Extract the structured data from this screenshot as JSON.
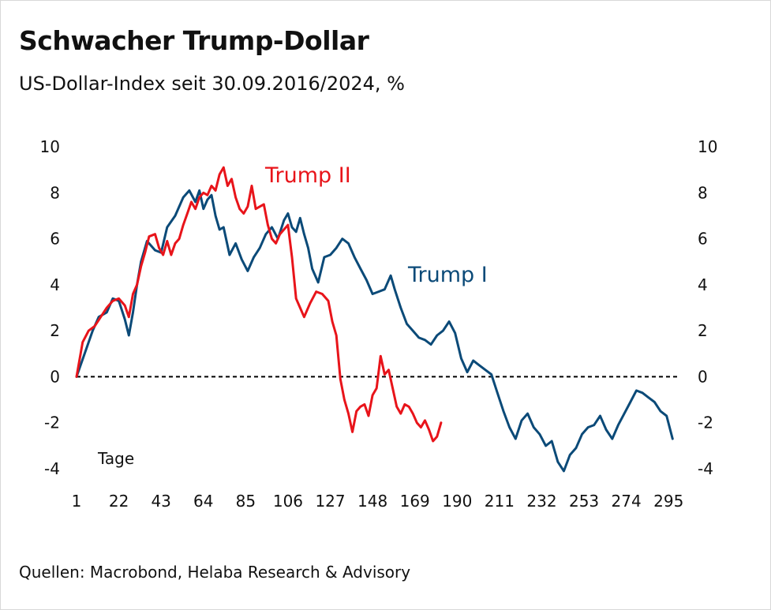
{
  "title": "Schwacher Trump-Dollar",
  "subtitle": "US-Dollar-Index seit 30.09.2016/2024, %",
  "source": "Quellen: Macrobond, Helaba Research & Advisory",
  "chart_data": {
    "type": "line",
    "xlabel": "Tage",
    "ylabel": "",
    "xlim": [
      1,
      300
    ],
    "ylim": [
      -4,
      10
    ],
    "x_ticks": [
      "1",
      "22",
      "43",
      "64",
      "85",
      "106",
      "127",
      "148",
      "169",
      "190",
      "211",
      "232",
      "253",
      "274",
      "295"
    ],
    "y_ticks_left": [
      "10",
      "8",
      "6",
      "4",
      "2",
      "0",
      "-2",
      "-4"
    ],
    "y_ticks_right": [
      "10",
      "8",
      "6",
      "4",
      "2",
      "0",
      "-2",
      "-4"
    ],
    "reference_line": {
      "y": 0,
      "style": "dashed"
    },
    "grid": false,
    "series": [
      {
        "name": "Trump I",
        "color": "#0b4a78",
        "points": [
          [
            1,
            0
          ],
          [
            5,
            1
          ],
          [
            9,
            2
          ],
          [
            12,
            2.6
          ],
          [
            16,
            2.8
          ],
          [
            19,
            3.4
          ],
          [
            22,
            3.3
          ],
          [
            25,
            2.5
          ],
          [
            27,
            1.8
          ],
          [
            29,
            2.8
          ],
          [
            31,
            4
          ],
          [
            33,
            5
          ],
          [
            36,
            5.9
          ],
          [
            40,
            5.5
          ],
          [
            43,
            5.4
          ],
          [
            46,
            6.5
          ],
          [
            50,
            7
          ],
          [
            54,
            7.8
          ],
          [
            57,
            8.1
          ],
          [
            60,
            7.6
          ],
          [
            62,
            8.1
          ],
          [
            64,
            7.3
          ],
          [
            66,
            7.7
          ],
          [
            68,
            7.9
          ],
          [
            70,
            7
          ],
          [
            72,
            6.4
          ],
          [
            74,
            6.5
          ],
          [
            77,
            5.3
          ],
          [
            80,
            5.8
          ],
          [
            83,
            5.1
          ],
          [
            86,
            4.6
          ],
          [
            89,
            5.2
          ],
          [
            92,
            5.6
          ],
          [
            95,
            6.2
          ],
          [
            98,
            6.5
          ],
          [
            101,
            6
          ],
          [
            104,
            6.8
          ],
          [
            106,
            7.1
          ],
          [
            108,
            6.5
          ],
          [
            110,
            6.3
          ],
          [
            112,
            6.9
          ],
          [
            114,
            6.2
          ],
          [
            116,
            5.6
          ],
          [
            118,
            4.7
          ],
          [
            121,
            4.1
          ],
          [
            124,
            5.2
          ],
          [
            127,
            5.3
          ],
          [
            130,
            5.6
          ],
          [
            133,
            6
          ],
          [
            136,
            5.8
          ],
          [
            139,
            5.2
          ],
          [
            142,
            4.7
          ],
          [
            145,
            4.2
          ],
          [
            148,
            3.6
          ],
          [
            151,
            3.7
          ],
          [
            154,
            3.8
          ],
          [
            157,
            4.4
          ],
          [
            159,
            3.8
          ],
          [
            162,
            3
          ],
          [
            165,
            2.3
          ],
          [
            168,
            2
          ],
          [
            171,
            1.7
          ],
          [
            174,
            1.6
          ],
          [
            177,
            1.4
          ],
          [
            180,
            1.8
          ],
          [
            183,
            2
          ],
          [
            186,
            2.4
          ],
          [
            189,
            1.9
          ],
          [
            192,
            0.8
          ],
          [
            195,
            0.2
          ],
          [
            198,
            0.7
          ],
          [
            201,
            0.5
          ],
          [
            204,
            0.3
          ],
          [
            207,
            0.1
          ],
          [
            210,
            -0.7
          ],
          [
            213,
            -1.5
          ],
          [
            216,
            -2.2
          ],
          [
            219,
            -2.7
          ],
          [
            222,
            -1.9
          ],
          [
            225,
            -1.6
          ],
          [
            228,
            -2.2
          ],
          [
            231,
            -2.5
          ],
          [
            234,
            -3
          ],
          [
            237,
            -2.8
          ],
          [
            240,
            -3.7
          ],
          [
            243,
            -4.1
          ],
          [
            246,
            -3.4
          ],
          [
            249,
            -3.1
          ],
          [
            252,
            -2.5
          ],
          [
            255,
            -2.2
          ],
          [
            258,
            -2.1
          ],
          [
            261,
            -1.7
          ],
          [
            264,
            -2.3
          ],
          [
            267,
            -2.7
          ],
          [
            270,
            -2.1
          ],
          [
            273,
            -1.6
          ],
          [
            276,
            -1.1
          ],
          [
            279,
            -0.6
          ],
          [
            282,
            -0.7
          ],
          [
            285,
            -0.9
          ],
          [
            288,
            -1.1
          ],
          [
            291,
            -1.5
          ],
          [
            294,
            -1.7
          ],
          [
            297,
            -2.7
          ]
        ]
      },
      {
        "name": "Trump II",
        "color": "#e8141a",
        "points": [
          [
            1,
            0
          ],
          [
            4,
            1.5
          ],
          [
            7,
            2
          ],
          [
            10,
            2.2
          ],
          [
            13,
            2.6
          ],
          [
            16,
            3
          ],
          [
            19,
            3.3
          ],
          [
            22,
            3.4
          ],
          [
            25,
            3.1
          ],
          [
            27,
            2.6
          ],
          [
            29,
            3.6
          ],
          [
            31,
            4
          ],
          [
            33,
            4.8
          ],
          [
            35,
            5.4
          ],
          [
            37,
            6.1
          ],
          [
            40,
            6.2
          ],
          [
            42,
            5.6
          ],
          [
            44,
            5.3
          ],
          [
            46,
            5.9
          ],
          [
            48,
            5.3
          ],
          [
            50,
            5.8
          ],
          [
            52,
            6
          ],
          [
            54,
            6.6
          ],
          [
            56,
            7.1
          ],
          [
            58,
            7.6
          ],
          [
            60,
            7.3
          ],
          [
            62,
            7.8
          ],
          [
            64,
            8
          ],
          [
            66,
            7.9
          ],
          [
            68,
            8.3
          ],
          [
            70,
            8.1
          ],
          [
            72,
            8.8
          ],
          [
            74,
            9.1
          ],
          [
            76,
            8.3
          ],
          [
            78,
            8.6
          ],
          [
            80,
            7.8
          ],
          [
            82,
            7.3
          ],
          [
            84,
            7.1
          ],
          [
            86,
            7.4
          ],
          [
            88,
            8.3
          ],
          [
            90,
            7.3
          ],
          [
            92,
            7.4
          ],
          [
            94,
            7.5
          ],
          [
            96,
            6.6
          ],
          [
            98,
            6
          ],
          [
            100,
            5.8
          ],
          [
            102,
            6.2
          ],
          [
            104,
            6.4
          ],
          [
            106,
            6.6
          ],
          [
            108,
            5.2
          ],
          [
            110,
            3.4
          ],
          [
            112,
            3
          ],
          [
            114,
            2.6
          ],
          [
            117,
            3.2
          ],
          [
            120,
            3.7
          ],
          [
            123,
            3.6
          ],
          [
            126,
            3.3
          ],
          [
            128,
            2.4
          ],
          [
            130,
            1.8
          ],
          [
            132,
            -0.1
          ],
          [
            134,
            -1
          ],
          [
            136,
            -1.6
          ],
          [
            138,
            -2.4
          ],
          [
            140,
            -1.5
          ],
          [
            142,
            -1.3
          ],
          [
            144,
            -1.2
          ],
          [
            146,
            -1.7
          ],
          [
            148,
            -0.8
          ],
          [
            150,
            -0.5
          ],
          [
            152,
            0.9
          ],
          [
            154,
            0.1
          ],
          [
            156,
            0.3
          ],
          [
            158,
            -0.5
          ],
          [
            160,
            -1.3
          ],
          [
            162,
            -1.6
          ],
          [
            164,
            -1.2
          ],
          [
            166,
            -1.3
          ],
          [
            168,
            -1.6
          ],
          [
            170,
            -2
          ],
          [
            172,
            -2.2
          ],
          [
            174,
            -1.9
          ],
          [
            176,
            -2.3
          ],
          [
            178,
            -2.8
          ],
          [
            180,
            -2.6
          ],
          [
            182,
            -2
          ]
        ]
      }
    ],
    "annotations": [
      {
        "text": "Trump II",
        "series": "Trump II"
      },
      {
        "text": "Trump I",
        "series": "Trump I"
      }
    ]
  }
}
